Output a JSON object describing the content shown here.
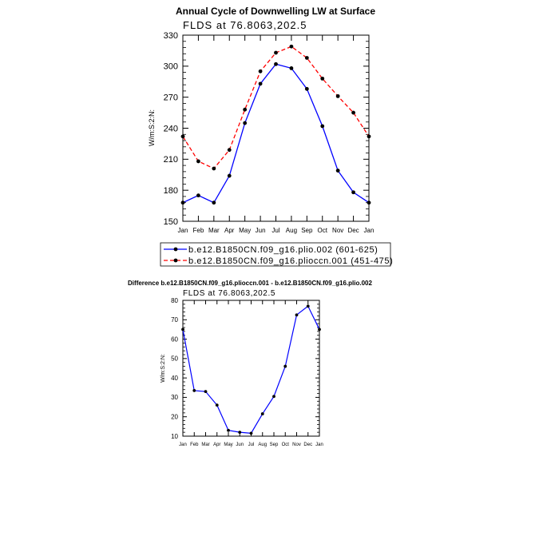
{
  "chart_data": [
    {
      "type": "line",
      "title": "Annual Cycle of Downwelling LW at Surface",
      "subtitle": "FLDS at 76.8063,202.5",
      "ylabel": "W/m:S:2:N:",
      "xlabel": "",
      "categories": [
        "Jan",
        "Feb",
        "Mar",
        "Apr",
        "May",
        "Jun",
        "Jul",
        "Aug",
        "Sep",
        "Oct",
        "Nov",
        "Dec",
        "Jan"
      ],
      "ylim": [
        150,
        330
      ],
      "yticks": [
        150,
        180,
        210,
        240,
        270,
        300,
        330
      ],
      "grid": false,
      "legend_position": "bottom",
      "series": [
        {
          "name": "b.e12.B1850CN.f09_g16.plio.002 (601-625)",
          "color": "#0000ff",
          "dash": "solid",
          "values": [
            168,
            175,
            168,
            194,
            245,
            283,
            302,
            298,
            278,
            242,
            199,
            178,
            168
          ]
        },
        {
          "name": "b.e12.B1850CN.f09_g16.plioccn.001 (451-475)",
          "color": "#ff0000",
          "dash": "dashed",
          "values": [
            232,
            208,
            201,
            219,
            258,
            295,
            313,
            319,
            308,
            288,
            271,
            255,
            232
          ]
        }
      ]
    },
    {
      "type": "line",
      "title": "Difference b.e12.B1850CN.f09_g16.plioccn.001 - b.e12.B1850CN.f09_g16.plio.002",
      "subtitle": "FLDS at 76.8063,202.5",
      "ylabel": "W/m:S:2:N:",
      "xlabel": "",
      "categories": [
        "Jan",
        "Feb",
        "Mar",
        "Apr",
        "May",
        "Jun",
        "Jul",
        "Aug",
        "Sep",
        "Oct",
        "Nov",
        "Dec",
        "Jan"
      ],
      "ylim": [
        10,
        80
      ],
      "yticks": [
        10,
        20,
        30,
        40,
        50,
        60,
        70,
        80
      ],
      "grid": false,
      "series": [
        {
          "name": "",
          "color": "#0000ff",
          "dash": "solid",
          "values": [
            65,
            33.5,
            33,
            26,
            13,
            12,
            11.5,
            21.5,
            30.5,
            46,
            72.5,
            77,
            65
          ]
        }
      ]
    }
  ]
}
